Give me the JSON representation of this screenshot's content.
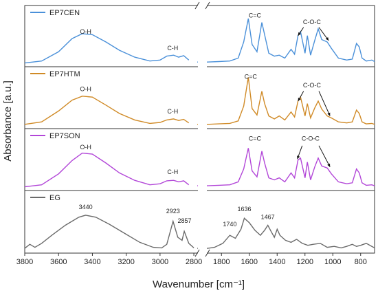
{
  "chart_data": {
    "type": "line",
    "ylabel": "Absorbance [a.u.]",
    "xlabel": "Wavenumber [cm⁻¹]",
    "x_reversed": true,
    "x_break": [
      2800,
      1900
    ],
    "x_ticks": [
      "3800",
      "3600",
      "3400",
      "3200",
      "3000",
      "2800",
      "1800",
      "1600",
      "1400",
      "1200",
      "1000",
      "800"
    ],
    "x_tick_values": [
      3800,
      3600,
      3400,
      3200,
      3000,
      2800,
      1800,
      1600,
      1400,
      1200,
      1000,
      800
    ],
    "x_segments": [
      [
        3800,
        2780
      ],
      [
        1900,
        700
      ]
    ],
    "panels": [
      {
        "name": "EP7CEN",
        "color": "#4a90d9",
        "labels": [
          {
            "text": "O-H",
            "x": 3440,
            "y": 0.62
          },
          {
            "text": "C-H",
            "x": 2925,
            "y": 0.28
          },
          {
            "text": "C=C",
            "x": 1560,
            "y": 0.95
          },
          {
            "text": "C-O-C",
            "x": 1150,
            "y": 0.82
          }
        ],
        "arrows": [
          {
            "from": [
              1210,
              0.75
            ],
            "to": [
              1250,
              0.58
            ]
          },
          {
            "from": [
              1100,
              0.75
            ],
            "to": [
              1030,
              0.48
            ]
          }
        ],
        "points": [
          [
            3800,
            0.02
          ],
          [
            3700,
            0.06
          ],
          [
            3600,
            0.25
          ],
          [
            3520,
            0.52
          ],
          [
            3460,
            0.62
          ],
          [
            3400,
            0.6
          ],
          [
            3320,
            0.45
          ],
          [
            3240,
            0.28
          ],
          [
            3150,
            0.14
          ],
          [
            3060,
            0.06
          ],
          [
            3000,
            0.08
          ],
          [
            2960,
            0.16
          ],
          [
            2920,
            0.18
          ],
          [
            2890,
            0.14
          ],
          [
            2860,
            0.17
          ],
          [
            2830,
            0.08
          ],
          [
            2780,
            0.04
          ],
          [
            1900,
            0.04
          ],
          [
            1820,
            0.05
          ],
          [
            1740,
            0.06
          ],
          [
            1680,
            0.12
          ],
          [
            1640,
            0.45
          ],
          [
            1607,
            0.93
          ],
          [
            1580,
            0.4
          ],
          [
            1545,
            0.25
          ],
          [
            1510,
            0.85
          ],
          [
            1490,
            0.6
          ],
          [
            1460,
            0.22
          ],
          [
            1420,
            0.16
          ],
          [
            1385,
            0.18
          ],
          [
            1345,
            0.12
          ],
          [
            1300,
            0.3
          ],
          [
            1275,
            0.2
          ],
          [
            1250,
            0.58
          ],
          [
            1232,
            0.66
          ],
          [
            1200,
            0.22
          ],
          [
            1183,
            0.58
          ],
          [
            1160,
            0.18
          ],
          [
            1130,
            0.48
          ],
          [
            1105,
            0.72
          ],
          [
            1080,
            0.5
          ],
          [
            1040,
            0.45
          ],
          [
            1010,
            0.32
          ],
          [
            960,
            0.12
          ],
          [
            900,
            0.08
          ],
          [
            860,
            0.1
          ],
          [
            830,
            0.42
          ],
          [
            810,
            0.35
          ],
          [
            790,
            0.12
          ],
          [
            760,
            0.06
          ],
          [
            720,
            0.08
          ],
          [
            700,
            0.05
          ]
        ]
      },
      {
        "name": "EP7HTM",
        "color": "#d08a26",
        "labels": [
          {
            "text": "O-H",
            "x": 3440,
            "y": 0.7
          },
          {
            "text": "C-H",
            "x": 2925,
            "y": 0.25
          },
          {
            "text": "C=C",
            "x": 1590,
            "y": 0.95
          },
          {
            "text": "C-O-C",
            "x": 1150,
            "y": 0.78
          }
        ],
        "arrows": [
          {
            "from": [
              1210,
              0.7
            ],
            "to": [
              1250,
              0.5
            ]
          },
          {
            "from": [
              1100,
              0.7
            ],
            "to": [
              1020,
              0.2
            ]
          }
        ],
        "points": [
          [
            3800,
            0.03
          ],
          [
            3700,
            0.08
          ],
          [
            3600,
            0.3
          ],
          [
            3520,
            0.52
          ],
          [
            3460,
            0.6
          ],
          [
            3400,
            0.58
          ],
          [
            3320,
            0.42
          ],
          [
            3240,
            0.25
          ],
          [
            3150,
            0.12
          ],
          [
            3060,
            0.05
          ],
          [
            3000,
            0.07
          ],
          [
            2960,
            0.12
          ],
          [
            2920,
            0.14
          ],
          [
            2890,
            0.11
          ],
          [
            2860,
            0.13
          ],
          [
            2830,
            0.06
          ],
          [
            2780,
            0.03
          ],
          [
            1900,
            0.03
          ],
          [
            1820,
            0.04
          ],
          [
            1740,
            0.05
          ],
          [
            1680,
            0.1
          ],
          [
            1640,
            0.4
          ],
          [
            1607,
            0.98
          ],
          [
            1580,
            0.35
          ],
          [
            1545,
            0.22
          ],
          [
            1510,
            0.7
          ],
          [
            1490,
            0.45
          ],
          [
            1460,
            0.2
          ],
          [
            1420,
            0.14
          ],
          [
            1385,
            0.2
          ],
          [
            1345,
            0.12
          ],
          [
            1300,
            0.28
          ],
          [
            1275,
            0.18
          ],
          [
            1250,
            0.5
          ],
          [
            1232,
            0.58
          ],
          [
            1200,
            0.2
          ],
          [
            1183,
            0.45
          ],
          [
            1160,
            0.16
          ],
          [
            1130,
            0.36
          ],
          [
            1105,
            0.5
          ],
          [
            1080,
            0.34
          ],
          [
            1040,
            0.2
          ],
          [
            1010,
            0.16
          ],
          [
            960,
            0.08
          ],
          [
            900,
            0.06
          ],
          [
            860,
            0.08
          ],
          [
            830,
            0.32
          ],
          [
            810,
            0.25
          ],
          [
            790,
            0.08
          ],
          [
            760,
            0.04
          ],
          [
            720,
            0.05
          ],
          [
            700,
            0.03
          ]
        ]
      },
      {
        "name": "EP7SON",
        "color": "#b246d8",
        "labels": [
          {
            "text": "O-H",
            "x": 3440,
            "y": 0.78
          },
          {
            "text": "C-H",
            "x": 2925,
            "y": 0.28
          },
          {
            "text": "C=C",
            "x": 1560,
            "y": 0.95
          },
          {
            "text": "C-O-C",
            "x": 1160,
            "y": 0.95
          }
        ],
        "arrows": [
          {
            "from": [
              1220,
              0.85
            ],
            "to": [
              1255,
              0.58
            ]
          },
          {
            "from": [
              1100,
              0.85
            ],
            "to": [
              1020,
              0.42
            ]
          }
        ],
        "points": [
          [
            3800,
            0.02
          ],
          [
            3700,
            0.06
          ],
          [
            3600,
            0.28
          ],
          [
            3520,
            0.55
          ],
          [
            3460,
            0.7
          ],
          [
            3400,
            0.68
          ],
          [
            3320,
            0.5
          ],
          [
            3240,
            0.3
          ],
          [
            3150,
            0.15
          ],
          [
            3060,
            0.06
          ],
          [
            3000,
            0.08
          ],
          [
            2960,
            0.14
          ],
          [
            2920,
            0.15
          ],
          [
            2890,
            0.12
          ],
          [
            2860,
            0.14
          ],
          [
            2830,
            0.06
          ],
          [
            2780,
            0.04
          ],
          [
            1900,
            0.04
          ],
          [
            1820,
            0.05
          ],
          [
            1740,
            0.06
          ],
          [
            1680,
            0.12
          ],
          [
            1640,
            0.38
          ],
          [
            1607,
            0.8
          ],
          [
            1580,
            0.34
          ],
          [
            1545,
            0.22
          ],
          [
            1510,
            0.74
          ],
          [
            1490,
            0.5
          ],
          [
            1460,
            0.2
          ],
          [
            1420,
            0.16
          ],
          [
            1385,
            0.2
          ],
          [
            1345,
            0.12
          ],
          [
            1300,
            0.3
          ],
          [
            1275,
            0.2
          ],
          [
            1250,
            0.56
          ],
          [
            1232,
            0.6
          ],
          [
            1200,
            0.2
          ],
          [
            1183,
            0.52
          ],
          [
            1160,
            0.16
          ],
          [
            1130,
            0.42
          ],
          [
            1105,
            0.6
          ],
          [
            1080,
            0.44
          ],
          [
            1040,
            0.4
          ],
          [
            1010,
            0.28
          ],
          [
            960,
            0.12
          ],
          [
            900,
            0.08
          ],
          [
            860,
            0.1
          ],
          [
            830,
            0.38
          ],
          [
            810,
            0.3
          ],
          [
            790,
            0.1
          ],
          [
            760,
            0.05
          ],
          [
            720,
            0.06
          ],
          [
            700,
            0.04
          ]
        ]
      },
      {
        "name": "EG",
        "color": "#6b6b6b",
        "labels": [
          {
            "text": "3440",
            "x": 3440,
            "y": 0.82
          },
          {
            "text": "2923",
            "x": 2923,
            "y": 0.74
          },
          {
            "text": "2857",
            "x": 2855,
            "y": 0.55
          },
          {
            "text": "1740",
            "x": 1740,
            "y": 0.48
          },
          {
            "text": "1636",
            "x": 1636,
            "y": 0.78
          },
          {
            "text": "1467",
            "x": 1467,
            "y": 0.62
          }
        ],
        "arrows": [],
        "points": [
          [
            3800,
            0.04
          ],
          [
            3770,
            0.12
          ],
          [
            3740,
            0.06
          ],
          [
            3700,
            0.14
          ],
          [
            3640,
            0.3
          ],
          [
            3560,
            0.5
          ],
          [
            3480,
            0.66
          ],
          [
            3440,
            0.7
          ],
          [
            3380,
            0.66
          ],
          [
            3300,
            0.52
          ],
          [
            3200,
            0.32
          ],
          [
            3120,
            0.16
          ],
          [
            3040,
            0.06
          ],
          [
            2990,
            0.05
          ],
          [
            2960,
            0.12
          ],
          [
            2923,
            0.58
          ],
          [
            2895,
            0.26
          ],
          [
            2870,
            0.2
          ],
          [
            2857,
            0.38
          ],
          [
            2830,
            0.14
          ],
          [
            2800,
            0.05
          ],
          [
            2780,
            0.04
          ],
          [
            1900,
            0.04
          ],
          [
            1850,
            0.06
          ],
          [
            1790,
            0.14
          ],
          [
            1740,
            0.3
          ],
          [
            1700,
            0.24
          ],
          [
            1660,
            0.42
          ],
          [
            1636,
            0.64
          ],
          [
            1600,
            0.55
          ],
          [
            1560,
            0.4
          ],
          [
            1520,
            0.3
          ],
          [
            1490,
            0.4
          ],
          [
            1467,
            0.5
          ],
          [
            1440,
            0.36
          ],
          [
            1420,
            0.26
          ],
          [
            1400,
            0.42
          ],
          [
            1380,
            0.3
          ],
          [
            1340,
            0.2
          ],
          [
            1300,
            0.16
          ],
          [
            1260,
            0.22
          ],
          [
            1220,
            0.14
          ],
          [
            1180,
            0.1
          ],
          [
            1140,
            0.12
          ],
          [
            1090,
            0.14
          ],
          [
            1040,
            0.06
          ],
          [
            990,
            0.08
          ],
          [
            940,
            0.05
          ],
          [
            900,
            0.08
          ],
          [
            860,
            0.12
          ],
          [
            830,
            0.08
          ],
          [
            800,
            0.1
          ],
          [
            760,
            0.14
          ],
          [
            720,
            0.08
          ],
          [
            700,
            0.05
          ]
        ]
      }
    ]
  }
}
